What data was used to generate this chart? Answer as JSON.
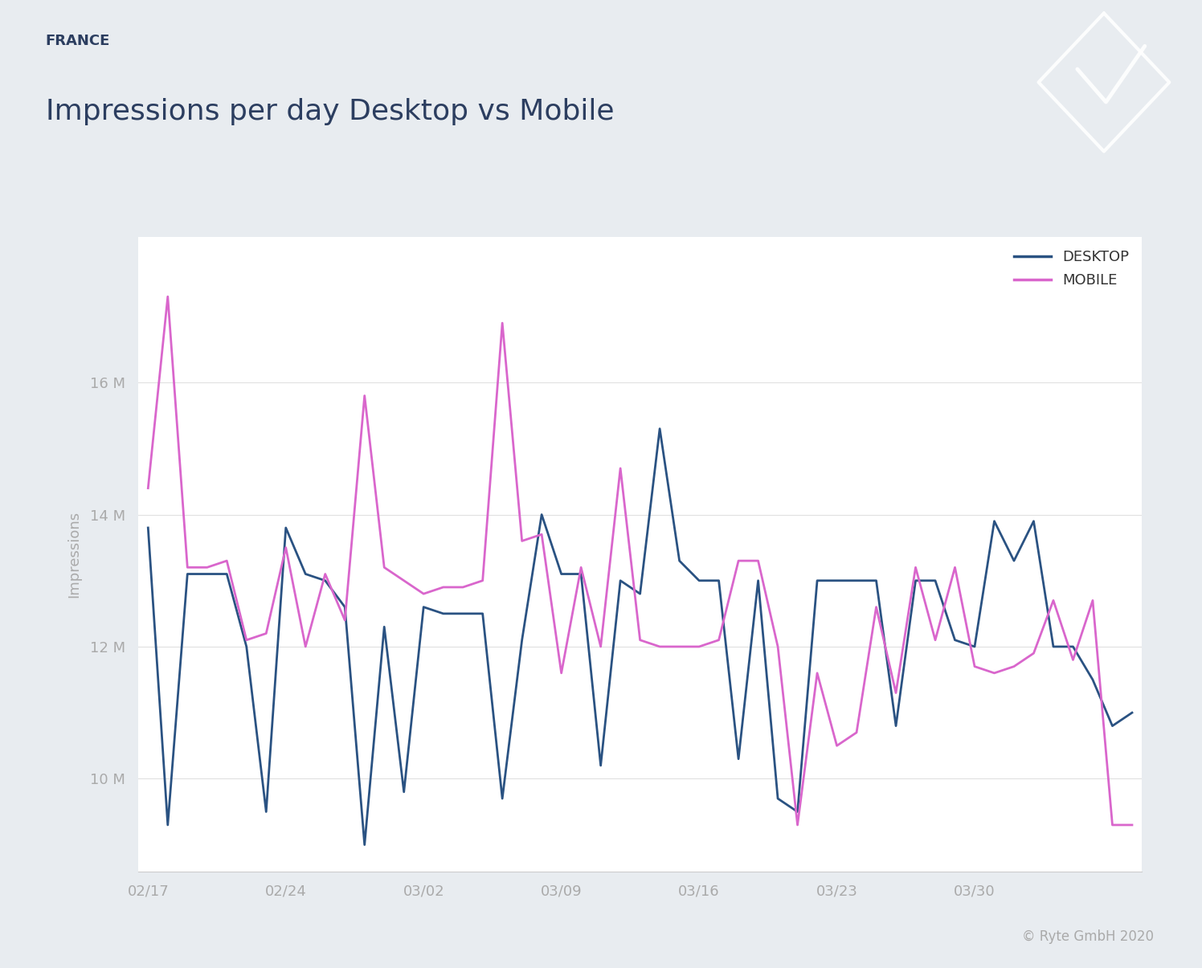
{
  "title_country": "FRANCE",
  "title_main": "Impressions per day Desktop vs Mobile",
  "ylabel": "Impressions",
  "background_fig": "#e8ecf0",
  "background_header": "#d8dfe6",
  "background_plot": "#ffffff",
  "desktop_color": "#2a5282",
  "mobile_color": "#d966cc",
  "line_width": 2.0,
  "desktop": [
    13.8,
    9.3,
    13.1,
    13.1,
    13.1,
    12.0,
    9.5,
    13.8,
    13.1,
    13.0,
    12.6,
    9.0,
    12.3,
    9.8,
    12.6,
    12.5,
    12.5,
    12.5,
    9.7,
    12.1,
    14.0,
    13.1,
    13.1,
    10.2,
    13.0,
    12.8,
    15.3,
    13.3,
    13.0,
    13.0,
    10.3,
    13.0,
    9.7,
    9.5,
    13.0,
    13.0,
    13.0,
    13.0,
    10.8,
    13.0,
    13.0,
    12.1,
    12.0,
    13.9,
    13.3,
    13.9,
    12.0,
    12.0,
    11.5,
    10.8,
    11.0
  ],
  "mobile": [
    14.4,
    17.3,
    13.2,
    13.2,
    13.3,
    12.1,
    12.2,
    13.5,
    12.0,
    13.1,
    12.4,
    15.8,
    13.2,
    13.0,
    12.8,
    12.9,
    12.9,
    13.0,
    16.9,
    13.6,
    13.7,
    11.6,
    13.2,
    12.0,
    14.7,
    12.1,
    12.0,
    12.0,
    12.0,
    12.1,
    13.3,
    13.3,
    12.0,
    9.3,
    11.6,
    10.5,
    10.7,
    12.6,
    11.3,
    13.2,
    12.1,
    13.2,
    11.7,
    11.6,
    11.7,
    11.9,
    12.7,
    11.8,
    12.7,
    9.3,
    9.3
  ],
  "yticks": [
    10,
    12,
    14,
    16
  ],
  "ytick_labels": [
    "10 M",
    "12 M",
    "14 M",
    "16 M"
  ],
  "xtick_labels": [
    "02/17",
    "02/24",
    "03/02",
    "03/09",
    "03/16",
    "03/23",
    "03/30"
  ],
  "legend_desktop": "DESKTOP",
  "legend_mobile": "MOBILE",
  "copyright": "© Ryte GmbH 2020"
}
